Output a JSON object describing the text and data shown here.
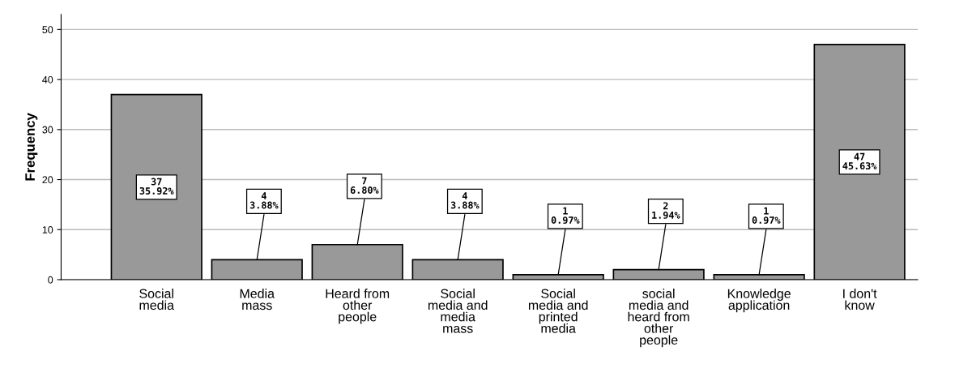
{
  "chart_data": {
    "type": "bar",
    "ylabel": "Frequency",
    "categories": [
      "Social\nmedia",
      "Media\nmass",
      "Heard from\nother\npeople",
      "Social\nmedia and\nmedia\nmass",
      "Social\nmedia and\nprinted\nmedia",
      "social\nmedia and\nheard from\nother\npeople",
      "Knowledge\napplication",
      "I don't\nknow"
    ],
    "values": [
      37,
      4,
      7,
      4,
      1,
      2,
      1,
      47
    ],
    "value_labels": [
      "37\n35.92%",
      "4\n3.88%",
      "7\n6.80%",
      "4\n3.88%",
      "1\n0.97%",
      "2\n1.94%",
      "1\n0.97%",
      "47\n45.63%"
    ],
    "color": "#999999",
    "ylim": [
      0,
      53
    ],
    "yticks": [
      0,
      10,
      20,
      30,
      40,
      50
    ],
    "grid": "y"
  }
}
